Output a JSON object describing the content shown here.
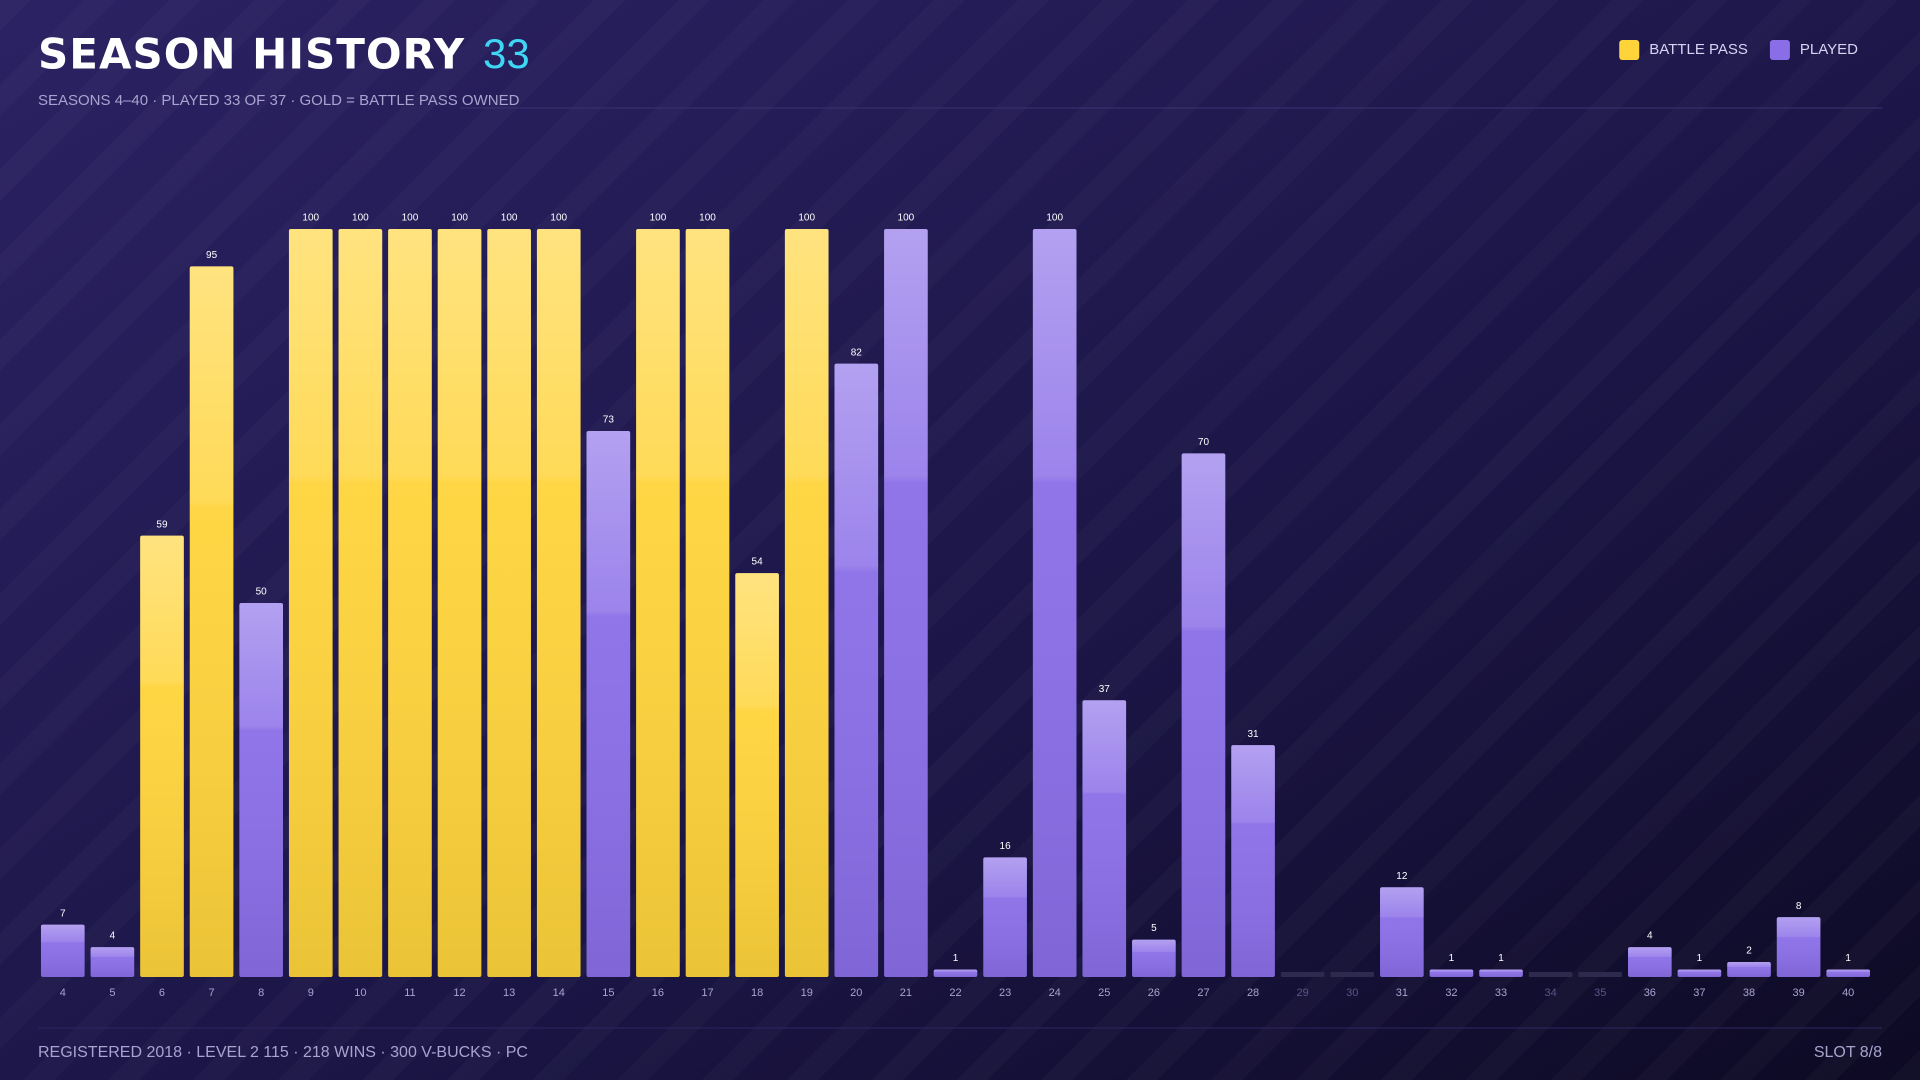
{
  "chart_data": {
    "type": "bar",
    "title": "SEASON HISTORY",
    "count": "33",
    "subtitle": "SEASONS 4–40 · PLAYED 33 OF 37 · GOLD = BATTLE PASS OWNED",
    "footer": "REGISTERED 2018 · LEVEL 2 115 · 218 WINS · 300 V-BUCKS · PC",
    "slot": "SLOT 8/8",
    "categories": [
      4,
      5,
      6,
      7,
      8,
      9,
      10,
      11,
      12,
      13,
      14,
      15,
      16,
      17,
      18,
      19,
      20,
      21,
      22,
      23,
      24,
      25,
      26,
      27,
      28,
      29,
      30,
      31,
      32,
      33,
      34,
      35,
      36,
      37,
      38,
      39,
      40
    ],
    "series": [
      {
        "name": "BATTLE PASS",
        "color": "#ffd43b",
        "values": [
          null,
          null,
          59,
          95,
          null,
          100,
          100,
          100,
          100,
          100,
          100,
          null,
          100,
          100,
          54,
          100,
          null,
          null,
          null,
          null,
          null,
          null,
          null,
          null,
          null,
          null,
          null,
          null,
          null,
          null,
          null,
          null,
          null,
          null,
          null,
          null,
          null
        ]
      },
      {
        "name": "PLAYED",
        "color": "#8a6ee8",
        "values": [
          7,
          4,
          null,
          null,
          50,
          null,
          null,
          null,
          null,
          null,
          null,
          73,
          null,
          null,
          null,
          null,
          82,
          100,
          1,
          16,
          100,
          37,
          5,
          70,
          31,
          null,
          null,
          12,
          1,
          1,
          null,
          null,
          4,
          1,
          2,
          8,
          1
        ]
      }
    ],
    "ylim": [
      0,
      100
    ],
    "legend": "top-right"
  }
}
